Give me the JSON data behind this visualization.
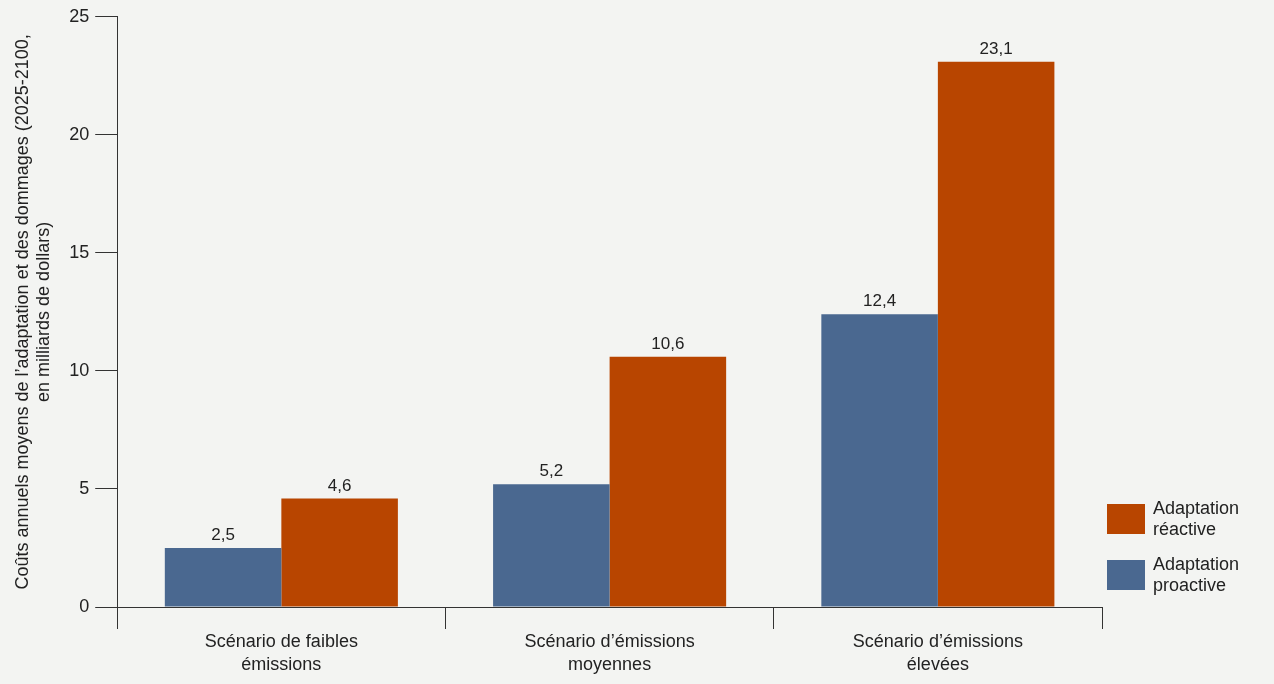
{
  "chart_data": {
    "type": "bar",
    "ylabel": "Coûts annuels moyens de l’adaptation et des dommages (2025-2100, en milliards de dollars)",
    "categories": [
      "Scénario de faibles émissions",
      "Scénario d’émissions moyennes",
      "Scénario d’émissions élevées"
    ],
    "series": [
      {
        "name": "Adaptation proactive",
        "color": "#4a6890",
        "values": [
          2.5,
          5.2,
          12.4
        ],
        "value_labels": [
          "2,5",
          "5,2",
          "12,4"
        ]
      },
      {
        "name": "Adaptation réactive",
        "color": "#b84500",
        "values": [
          4.6,
          10.6,
          23.1
        ],
        "value_labels": [
          "4,6",
          "10,6",
          "23,1"
        ]
      }
    ],
    "ylim": [
      0,
      25
    ],
    "yticks": [
      0,
      5,
      10,
      15,
      20,
      25
    ],
    "grid": false,
    "legend": "bottom right"
  }
}
